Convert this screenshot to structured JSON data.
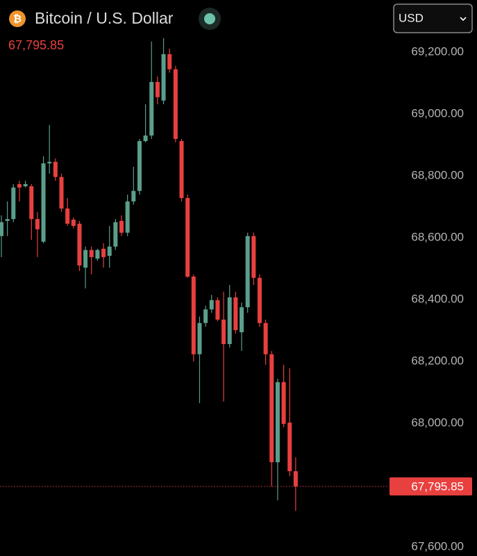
{
  "chart_data": {
    "type": "candlestick",
    "title": "Bitcoin / U.S. Dollar",
    "currency_selector": "USD",
    "last_price": {
      "value": 67795.85,
      "label": "67,795.85"
    },
    "up_color": "#5a9e8c",
    "down_color": "#e8403f",
    "open": [
      68605,
      68654,
      68660,
      68773,
      68766,
      68766,
      68660,
      68587,
      68840,
      68845,
      68796,
      68694,
      68658,
      68645,
      68503,
      68560,
      68532,
      68564,
      68541,
      68571,
      68654,
      68616,
      68717,
      68751,
      68912,
      68930,
      69103,
      69043,
      69193,
      69144,
      68912,
      68728,
      68474,
      68223,
      68324,
      68368,
      68398,
      68335,
      68256,
      68407,
      68294,
      68375,
      68605,
      68470,
      68324,
      68223,
      67874,
      68133,
      68002,
      67845
    ],
    "high": [
      68672,
      68717,
      68773,
      68784,
      68784,
      68773,
      68683,
      68863,
      68964,
      68856,
      68807,
      68728,
      68665,
      68654,
      68571,
      68571,
      68564,
      68582,
      68638,
      68660,
      68672,
      68739,
      68829,
      68919,
      69031,
      69234,
      69121,
      69245,
      69211,
      69155,
      68919,
      68739,
      68481,
      68345,
      68380,
      68415,
      68407,
      68425,
      68447,
      68425,
      68390,
      68616,
      68616,
      68481,
      68335,
      68234,
      68144,
      68189,
      68178,
      67890
    ],
    "low": [
      68537,
      68605,
      68650,
      68717,
      68762,
      68593,
      68537,
      68582,
      68807,
      68784,
      68683,
      68638,
      68630,
      68492,
      68436,
      68481,
      68525,
      68503,
      68503,
      68560,
      68605,
      68605,
      68706,
      68739,
      68908,
      68919,
      69031,
      69031,
      69133,
      68908,
      68717,
      68470,
      68200,
      68065,
      68312,
      68357,
      68330,
      68070,
      68245,
      68290,
      68234,
      68357,
      68447,
      68312,
      68189,
      67796,
      67751,
      67987,
      67829,
      67717
    ],
    "close": [
      68650,
      68660,
      68762,
      68762,
      68773,
      68660,
      68627,
      68840,
      68845,
      68796,
      68694,
      68645,
      68638,
      68510,
      68560,
      68537,
      68560,
      68537,
      68571,
      68650,
      68616,
      68717,
      68751,
      68912,
      68930,
      69103,
      69054,
      69193,
      69144,
      68919,
      68728,
      68474,
      68223,
      68324,
      68368,
      68398,
      68335,
      68256,
      68407,
      68301,
      68375,
      68605,
      68470,
      68324,
      68223,
      67874,
      68133,
      67998,
      67845,
      67795.85
    ],
    "ylim": [
      67571,
      69368
    ],
    "yticks": [
      {
        "value": 69200,
        "label": "69,200.00"
      },
      {
        "value": 69000,
        "label": "69,000.00"
      },
      {
        "value": 68800,
        "label": "68,800.00"
      },
      {
        "value": 68600,
        "label": "68,600.00"
      },
      {
        "value": 68400,
        "label": "68,400.00"
      },
      {
        "value": 68200,
        "label": "68,200.00"
      },
      {
        "value": 68000,
        "label": "68,000.00"
      },
      {
        "value": 67600,
        "label": "67,600.00"
      }
    ]
  }
}
